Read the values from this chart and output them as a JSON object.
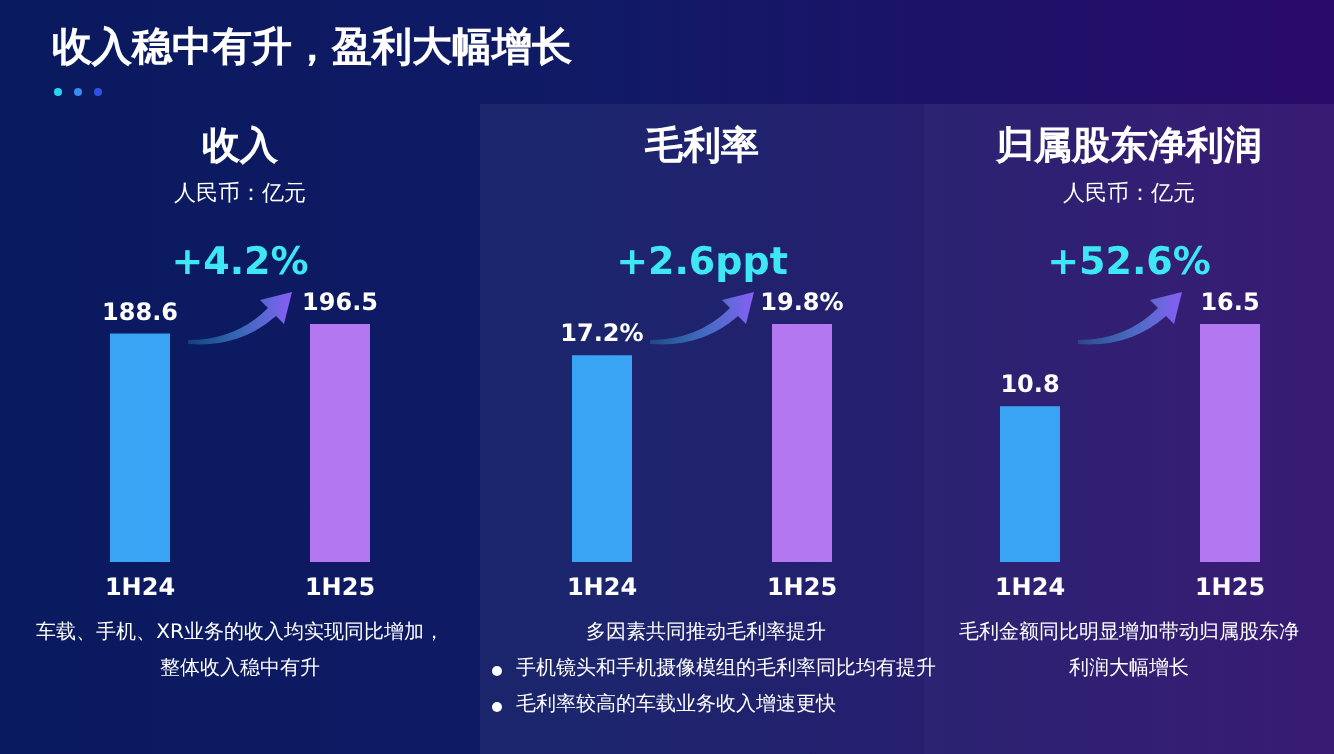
{
  "chart_data": [
    {
      "type": "other",
      "title": "收入稳中有升，盈利大幅增长"
    },
    {
      "type": "bar",
      "title": "收入",
      "subtitle": "人民币：亿元",
      "categories": [
        "1H24",
        "1H25"
      ],
      "values": [
        188.6,
        196.5
      ],
      "colors": [
        "#3aa4f4",
        "#b377f2"
      ],
      "data_labels": true,
      "annotations": [
        "+4.2%",
        "车载、手机、XR业务的收入均实现同比增加，整体收入稳中有升"
      ]
    },
    {
      "type": "bar",
      "title": "毛利率",
      "categories": [
        "1H24",
        "1H25"
      ],
      "values": [
        17.2,
        19.8
      ],
      "colors": [
        "#3aa4f4",
        "#b377f2"
      ],
      "value_labels": [
        "17.2%",
        "19.8%"
      ],
      "annotations": [
        "+2.6ppt",
        "多因素共同推动毛利率提升",
        "手机镜头和手机摄像模组的毛利率同比均有提升",
        "毛利率较高的车载业务收入增速更快"
      ]
    },
    {
      "type": "bar",
      "title": "归属股东净利润",
      "subtitle": "人民币：亿元",
      "categories": [
        "1H24",
        "1H25"
      ],
      "values": [
        10.8,
        16.5
      ],
      "colors": [
        "#3aa4f4",
        "#b377f2"
      ],
      "data_labels": true,
      "annotations": [
        "+52.6%",
        "毛利金额同比明显增加带动归属股东净利润大幅增长"
      ]
    }
  ]
}
